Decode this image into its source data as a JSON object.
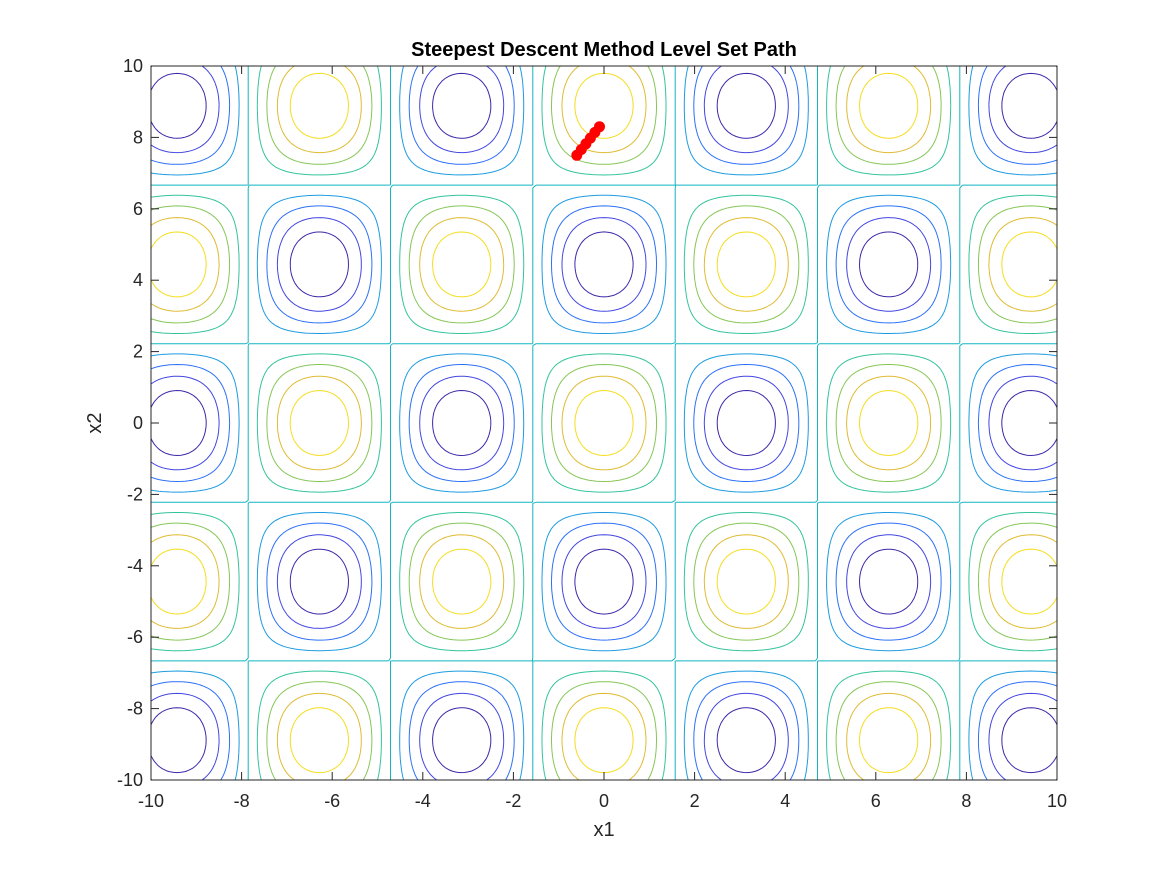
{
  "chart_data": {
    "type": "contour",
    "title": "Steepest Descent Method Level Set Path",
    "xlabel": "x1",
    "ylabel": "x2",
    "xlim": [
      -10,
      10
    ],
    "ylim": [
      -10,
      10
    ],
    "xticks": [
      -10,
      -8,
      -6,
      -4,
      -2,
      0,
      2,
      4,
      6,
      8,
      10
    ],
    "yticks": [
      -10,
      -8,
      -6,
      -4,
      -2,
      0,
      2,
      4,
      6,
      8,
      10
    ],
    "xtick_labels": [
      "-10",
      "-8",
      "-6",
      "-4",
      "-2",
      "0",
      "2",
      "4",
      "6",
      "8",
      "10"
    ],
    "ytick_labels": [
      "-10",
      "-8",
      "-6",
      "-4",
      "-2",
      "0",
      "2",
      "4",
      "6",
      "8",
      "10"
    ],
    "grid": false,
    "function": "cos(x1) * cos(x2 / 1.414)",
    "contour_levels": [
      -0.8,
      -0.6,
      -0.4,
      -0.2,
      0.0,
      0.2,
      0.4,
      0.6,
      0.8
    ],
    "contour_colors": [
      "#3e26a8",
      "#4246e0",
      "#2c71f7",
      "#1e9be0",
      "#12b5c0",
      "#34c39b",
      "#86c657",
      "#dfbb33",
      "#f5dd1f"
    ],
    "colormap": "parula",
    "path": {
      "color": "#ff0000",
      "x": [
        -0.1,
        -0.2,
        -0.3,
        -0.4,
        -0.5,
        -0.6
      ],
      "y": [
        8.3,
        8.14,
        7.98,
        7.82,
        7.66,
        7.5
      ]
    }
  }
}
